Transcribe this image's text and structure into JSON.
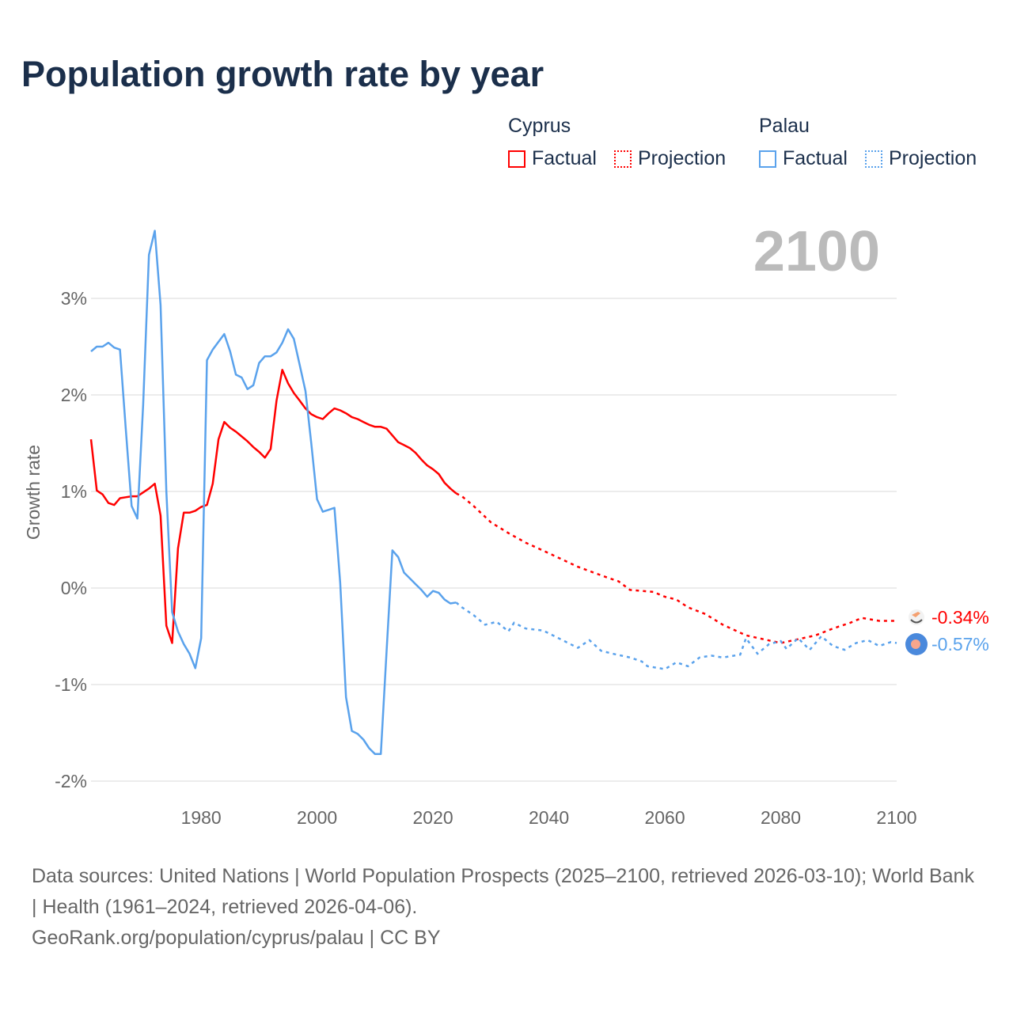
{
  "title": "Population growth rate by year",
  "legend": {
    "groups": [
      {
        "name": "Cyprus",
        "factual": "Factual",
        "projection": "Projection",
        "color": "#ff0000"
      },
      {
        "name": "Palau",
        "factual": "Factual",
        "projection": "Projection",
        "color": "#5aa2ec"
      }
    ]
  },
  "footer": {
    "line1": "Data sources: United Nations | World Population Prospects (2025–2100, retrieved 2026-03-10); World Bank | Health (1961–2024, retrieved 2026-04-06).",
    "line2": "GeoRank.org/population/cyprus/palau | CC BY"
  },
  "chart_data": {
    "type": "line",
    "title": "Population growth rate by year",
    "xlabel": "",
    "ylabel": "Growth rate",
    "current_year_label": "2100",
    "xlim": [
      1961,
      2100
    ],
    "ylim": [
      -2.2,
      3.7
    ],
    "yticks": [
      3,
      2,
      1,
      0,
      -1,
      -2
    ],
    "ytick_labels": [
      "3%",
      "2%",
      "1%",
      "0%",
      "-1%",
      "-2%"
    ],
    "xticks": [
      1980,
      2000,
      2020,
      2040,
      2060,
      2080,
      2100
    ],
    "xtick_labels": [
      "1980",
      "2000",
      "2020",
      "2040",
      "2060",
      "2080",
      "2100"
    ],
    "grid": true,
    "legend_position": "top-right",
    "series": [
      {
        "name": "Cyprus",
        "color": "#ff0000",
        "end_label": "-0.34%",
        "factual": {
          "x": [
            1961,
            1962,
            1963,
            1964,
            1965,
            1966,
            1967,
            1968,
            1969,
            1970,
            1971,
            1972,
            1973,
            1974,
            1975,
            1976,
            1977,
            1978,
            1979,
            1980,
            1981,
            1982,
            1983,
            1984,
            1985,
            1986,
            1987,
            1988,
            1989,
            1990,
            1991,
            1992,
            1993,
            1994,
            1995,
            1996,
            1997,
            1998,
            1999,
            2000,
            2001,
            2002,
            2003,
            2004,
            2005,
            2006,
            2007,
            2008,
            2009,
            2010,
            2011,
            2012,
            2013,
            2014,
            2015,
            2016,
            2017,
            2018,
            2019,
            2020,
            2021,
            2022,
            2023,
            2024
          ],
          "y": [
            1.54,
            1.01,
            0.97,
            0.88,
            0.86,
            0.93,
            0.94,
            0.95,
            0.95,
            0.99,
            1.03,
            1.08,
            0.75,
            -0.39,
            -0.57,
            0.41,
            0.78,
            0.78,
            0.8,
            0.84,
            0.86,
            1.08,
            1.54,
            1.72,
            1.66,
            1.62,
            1.57,
            1.52,
            1.46,
            1.41,
            1.35,
            1.44,
            1.94,
            2.26,
            2.12,
            2.02,
            1.94,
            1.86,
            1.8,
            1.77,
            1.75,
            1.81,
            1.86,
            1.84,
            1.81,
            1.77,
            1.75,
            1.72,
            1.69,
            1.67,
            1.67,
            1.65,
            1.58,
            1.51,
            1.48,
            1.45,
            1.4,
            1.33,
            1.27,
            1.23,
            1.18,
            1.09,
            1.03,
            0.98
          ]
        },
        "projection": {
          "x": [
            2024,
            2025,
            2027,
            2030,
            2033,
            2036,
            2040,
            2045,
            2050,
            2052,
            2054,
            2058,
            2060,
            2062,
            2064,
            2067,
            2070,
            2074,
            2077,
            2080,
            2083,
            2086,
            2089,
            2092,
            2094,
            2097,
            2100
          ],
          "y": [
            0.98,
            0.95,
            0.85,
            0.68,
            0.57,
            0.47,
            0.36,
            0.22,
            0.11,
            0.07,
            -0.02,
            -0.04,
            -0.09,
            -0.12,
            -0.2,
            -0.27,
            -0.38,
            -0.49,
            -0.53,
            -0.57,
            -0.53,
            -0.49,
            -0.42,
            -0.36,
            -0.31,
            -0.34,
            -0.34
          ]
        }
      },
      {
        "name": "Palau",
        "color": "#5aa2ec",
        "end_label": "-0.57%",
        "factual": {
          "x": [
            1961,
            1962,
            1963,
            1964,
            1965,
            1966,
            1967,
            1968,
            1969,
            1970,
            1971,
            1972,
            1973,
            1974,
            1975,
            1976,
            1977,
            1978,
            1979,
            1980,
            1981,
            1982,
            1983,
            1984,
            1985,
            1986,
            1987,
            1988,
            1989,
            1990,
            1991,
            1992,
            1993,
            1994,
            1995,
            1996,
            1997,
            1998,
            1999,
            2000,
            2001,
            2002,
            2003,
            2004,
            2005,
            2006,
            2007,
            2008,
            2009,
            2010,
            2011,
            2012,
            2013,
            2014,
            2015,
            2016,
            2017,
            2018,
            2019,
            2020,
            2021,
            2022,
            2023,
            2024
          ],
          "y": [
            2.45,
            2.5,
            2.5,
            2.54,
            2.49,
            2.47,
            1.65,
            0.85,
            0.72,
            1.9,
            3.45,
            3.7,
            2.93,
            1.0,
            -0.25,
            -0.45,
            -0.58,
            -0.68,
            -0.83,
            -0.52,
            2.36,
            2.47,
            2.55,
            2.63,
            2.45,
            2.21,
            2.18,
            2.06,
            2.1,
            2.33,
            2.4,
            2.4,
            2.44,
            2.54,
            2.68,
            2.58,
            2.31,
            2.04,
            1.5,
            0.92,
            0.79,
            0.81,
            0.83,
            0.05,
            -1.13,
            -1.48,
            -1.51,
            -1.57,
            -1.66,
            -1.72,
            -1.72,
            -0.65,
            0.39,
            0.32,
            0.16,
            0.1,
            0.04,
            -0.02,
            -0.09,
            -0.03,
            -0.05,
            -0.12,
            -0.16,
            -0.15
          ]
        },
        "projection": {
          "x": [
            2024,
            2025,
            2027,
            2029,
            2031,
            2033,
            2034,
            2036,
            2039,
            2041,
            2043,
            2045,
            2047,
            2049,
            2051,
            2054,
            2056,
            2057,
            2060,
            2062,
            2064,
            2066,
            2068,
            2070,
            2073,
            2074,
            2076,
            2078,
            2080,
            2081,
            2083,
            2085,
            2087,
            2089,
            2091,
            2093,
            2095,
            2097,
            2099,
            2100
          ],
          "y": [
            -0.15,
            -0.2,
            -0.28,
            -0.38,
            -0.35,
            -0.45,
            -0.36,
            -0.42,
            -0.44,
            -0.5,
            -0.56,
            -0.62,
            -0.54,
            -0.65,
            -0.68,
            -0.72,
            -0.76,
            -0.81,
            -0.84,
            -0.77,
            -0.81,
            -0.72,
            -0.7,
            -0.72,
            -0.69,
            -0.52,
            -0.68,
            -0.58,
            -0.55,
            -0.63,
            -0.52,
            -0.64,
            -0.5,
            -0.6,
            -0.64,
            -0.57,
            -0.54,
            -0.6,
            -0.56,
            -0.57
          ]
        }
      }
    ]
  }
}
